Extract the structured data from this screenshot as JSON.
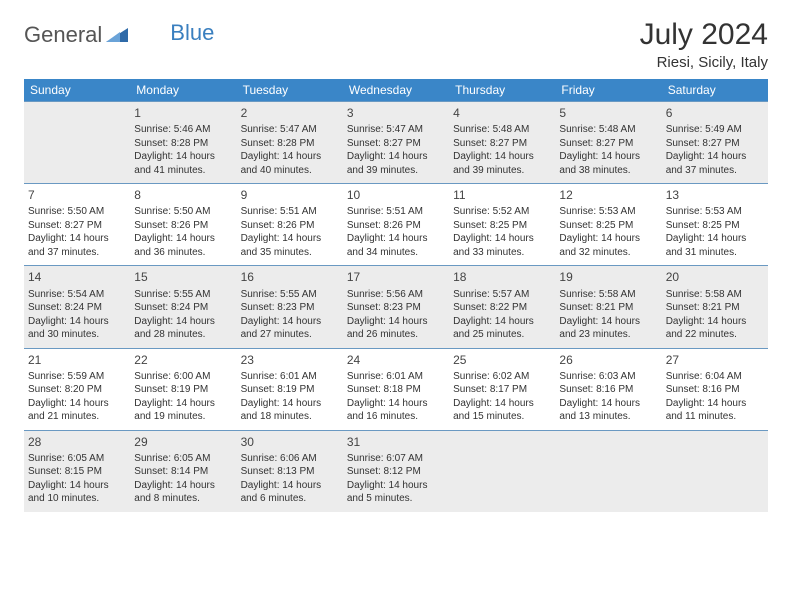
{
  "logo": {
    "part1": "General",
    "part2": "Blue",
    "icon_fill": "#2f6aa8"
  },
  "title": "July 2024",
  "location": "Riesi, Sicily, Italy",
  "colors": {
    "header_bg": "#3a86c8",
    "header_fg": "#ffffff",
    "row_border": "#6a99c2",
    "row_alt_bg": "#ececec",
    "text": "#333333"
  },
  "day_headers": [
    "Sunday",
    "Monday",
    "Tuesday",
    "Wednesday",
    "Thursday",
    "Friday",
    "Saturday"
  ],
  "weeks": [
    [
      {
        "num": "",
        "lines": []
      },
      {
        "num": "1",
        "lines": [
          "Sunrise: 5:46 AM",
          "Sunset: 8:28 PM",
          "Daylight: 14 hours",
          "and 41 minutes."
        ]
      },
      {
        "num": "2",
        "lines": [
          "Sunrise: 5:47 AM",
          "Sunset: 8:28 PM",
          "Daylight: 14 hours",
          "and 40 minutes."
        ]
      },
      {
        "num": "3",
        "lines": [
          "Sunrise: 5:47 AM",
          "Sunset: 8:27 PM",
          "Daylight: 14 hours",
          "and 39 minutes."
        ]
      },
      {
        "num": "4",
        "lines": [
          "Sunrise: 5:48 AM",
          "Sunset: 8:27 PM",
          "Daylight: 14 hours",
          "and 39 minutes."
        ]
      },
      {
        "num": "5",
        "lines": [
          "Sunrise: 5:48 AM",
          "Sunset: 8:27 PM",
          "Daylight: 14 hours",
          "and 38 minutes."
        ]
      },
      {
        "num": "6",
        "lines": [
          "Sunrise: 5:49 AM",
          "Sunset: 8:27 PM",
          "Daylight: 14 hours",
          "and 37 minutes."
        ]
      }
    ],
    [
      {
        "num": "7",
        "lines": [
          "Sunrise: 5:50 AM",
          "Sunset: 8:27 PM",
          "Daylight: 14 hours",
          "and 37 minutes."
        ]
      },
      {
        "num": "8",
        "lines": [
          "Sunrise: 5:50 AM",
          "Sunset: 8:26 PM",
          "Daylight: 14 hours",
          "and 36 minutes."
        ]
      },
      {
        "num": "9",
        "lines": [
          "Sunrise: 5:51 AM",
          "Sunset: 8:26 PM",
          "Daylight: 14 hours",
          "and 35 minutes."
        ]
      },
      {
        "num": "10",
        "lines": [
          "Sunrise: 5:51 AM",
          "Sunset: 8:26 PM",
          "Daylight: 14 hours",
          "and 34 minutes."
        ]
      },
      {
        "num": "11",
        "lines": [
          "Sunrise: 5:52 AM",
          "Sunset: 8:25 PM",
          "Daylight: 14 hours",
          "and 33 minutes."
        ]
      },
      {
        "num": "12",
        "lines": [
          "Sunrise: 5:53 AM",
          "Sunset: 8:25 PM",
          "Daylight: 14 hours",
          "and 32 minutes."
        ]
      },
      {
        "num": "13",
        "lines": [
          "Sunrise: 5:53 AM",
          "Sunset: 8:25 PM",
          "Daylight: 14 hours",
          "and 31 minutes."
        ]
      }
    ],
    [
      {
        "num": "14",
        "lines": [
          "Sunrise: 5:54 AM",
          "Sunset: 8:24 PM",
          "Daylight: 14 hours",
          "and 30 minutes."
        ]
      },
      {
        "num": "15",
        "lines": [
          "Sunrise: 5:55 AM",
          "Sunset: 8:24 PM",
          "Daylight: 14 hours",
          "and 28 minutes."
        ]
      },
      {
        "num": "16",
        "lines": [
          "Sunrise: 5:55 AM",
          "Sunset: 8:23 PM",
          "Daylight: 14 hours",
          "and 27 minutes."
        ]
      },
      {
        "num": "17",
        "lines": [
          "Sunrise: 5:56 AM",
          "Sunset: 8:23 PM",
          "Daylight: 14 hours",
          "and 26 minutes."
        ]
      },
      {
        "num": "18",
        "lines": [
          "Sunrise: 5:57 AM",
          "Sunset: 8:22 PM",
          "Daylight: 14 hours",
          "and 25 minutes."
        ]
      },
      {
        "num": "19",
        "lines": [
          "Sunrise: 5:58 AM",
          "Sunset: 8:21 PM",
          "Daylight: 14 hours",
          "and 23 minutes."
        ]
      },
      {
        "num": "20",
        "lines": [
          "Sunrise: 5:58 AM",
          "Sunset: 8:21 PM",
          "Daylight: 14 hours",
          "and 22 minutes."
        ]
      }
    ],
    [
      {
        "num": "21",
        "lines": [
          "Sunrise: 5:59 AM",
          "Sunset: 8:20 PM",
          "Daylight: 14 hours",
          "and 21 minutes."
        ]
      },
      {
        "num": "22",
        "lines": [
          "Sunrise: 6:00 AM",
          "Sunset: 8:19 PM",
          "Daylight: 14 hours",
          "and 19 minutes."
        ]
      },
      {
        "num": "23",
        "lines": [
          "Sunrise: 6:01 AM",
          "Sunset: 8:19 PM",
          "Daylight: 14 hours",
          "and 18 minutes."
        ]
      },
      {
        "num": "24",
        "lines": [
          "Sunrise: 6:01 AM",
          "Sunset: 8:18 PM",
          "Daylight: 14 hours",
          "and 16 minutes."
        ]
      },
      {
        "num": "25",
        "lines": [
          "Sunrise: 6:02 AM",
          "Sunset: 8:17 PM",
          "Daylight: 14 hours",
          "and 15 minutes."
        ]
      },
      {
        "num": "26",
        "lines": [
          "Sunrise: 6:03 AM",
          "Sunset: 8:16 PM",
          "Daylight: 14 hours",
          "and 13 minutes."
        ]
      },
      {
        "num": "27",
        "lines": [
          "Sunrise: 6:04 AM",
          "Sunset: 8:16 PM",
          "Daylight: 14 hours",
          "and 11 minutes."
        ]
      }
    ],
    [
      {
        "num": "28",
        "lines": [
          "Sunrise: 6:05 AM",
          "Sunset: 8:15 PM",
          "Daylight: 14 hours",
          "and 10 minutes."
        ]
      },
      {
        "num": "29",
        "lines": [
          "Sunrise: 6:05 AM",
          "Sunset: 8:14 PM",
          "Daylight: 14 hours",
          "and 8 minutes."
        ]
      },
      {
        "num": "30",
        "lines": [
          "Sunrise: 6:06 AM",
          "Sunset: 8:13 PM",
          "Daylight: 14 hours",
          "and 6 minutes."
        ]
      },
      {
        "num": "31",
        "lines": [
          "Sunrise: 6:07 AM",
          "Sunset: 8:12 PM",
          "Daylight: 14 hours",
          "and 5 minutes."
        ]
      },
      {
        "num": "",
        "lines": []
      },
      {
        "num": "",
        "lines": []
      },
      {
        "num": "",
        "lines": []
      }
    ]
  ]
}
